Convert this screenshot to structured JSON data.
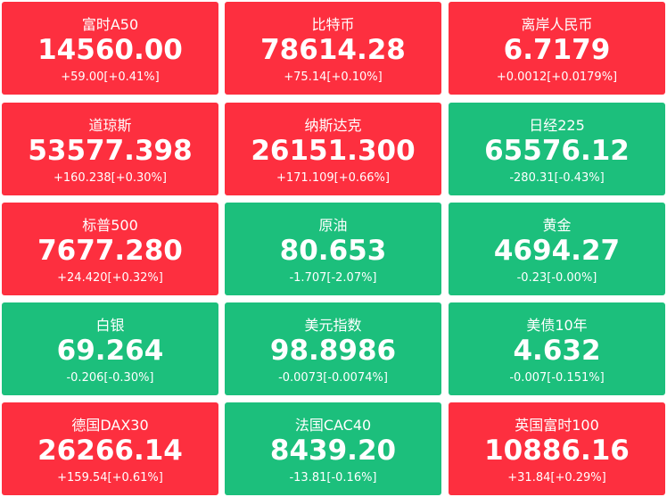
{
  "tiles": [
    {
      "name": "富时A50",
      "price": "14560.00",
      "change": "+59.00[+0.41%]",
      "color": "#fd2f3f"
    },
    {
      "name": "比特币",
      "price": "78614.28",
      "change": "+75.14[+0.10%]",
      "color": "#fd2f3f"
    },
    {
      "name": "离岸人民币",
      "price": "6.7179",
      "change": "+0.0012[+0.0179%]",
      "color": "#fd2f3f"
    },
    {
      "name": "道琼斯",
      "price": "53577.398",
      "change": "+160.238[+0.30%]",
      "color": "#fd2f3f"
    },
    {
      "name": "纳斯达克",
      "price": "26151.300",
      "change": "+171.109[+0.66%]",
      "color": "#fd2f3f"
    },
    {
      "name": "日经225",
      "price": "65576.12",
      "change": "-280.31[-0.43%]",
      "color": "#1cbf7c"
    },
    {
      "name": "标普500",
      "price": "7677.280",
      "change": "+24.420[+0.32%]",
      "color": "#fd2f3f"
    },
    {
      "name": "原油",
      "price": "80.653",
      "change": "-1.707[-2.07%]",
      "color": "#1cbf7c"
    },
    {
      "name": "黄金",
      "price": "4694.27",
      "change": "-0.23[-0.00%]",
      "color": "#1cbf7c"
    },
    {
      "name": "白银",
      "price": "69.264",
      "change": "-0.206[-0.30%]",
      "color": "#1cbf7c"
    },
    {
      "name": "美元指数",
      "price": "98.8986",
      "change": "-0.0073[-0.0074%]",
      "color": "#1cbf7c"
    },
    {
      "name": "美债10年",
      "price": "4.632",
      "change": "-0.007[-0.151%]",
      "color": "#1cbf7c"
    },
    {
      "name": "德国DAX30",
      "price": "26266.14",
      "change": "+159.54[+0.61%]",
      "color": "#fd2f3f"
    },
    {
      "name": "法国CAC40",
      "price": "8439.20",
      "change": "-13.81[-0.16%]",
      "color": "#1cbf7c"
    },
    {
      "name": "英国富时100",
      "price": "10886.16",
      "change": "+31.84[+0.29%]",
      "color": "#fd2f3f"
    }
  ]
}
